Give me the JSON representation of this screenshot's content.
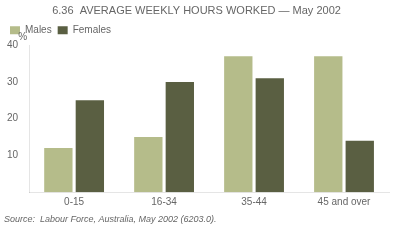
{
  "chart_data": {
    "type": "bar",
    "title": "6.36  AVERAGE WEEKLY HOURS WORKED — May 2002",
    "ylabel": "%",
    "categories": [
      "0-15",
      "16-34",
      "35-44",
      "45 and over"
    ],
    "series": [
      {
        "name": "Males",
        "color": "#b5bc8a",
        "values": [
          12,
          15,
          37,
          37
        ]
      },
      {
        "name": "Females",
        "color": "#5a5f42",
        "values": [
          25,
          30,
          31,
          14
        ]
      }
    ],
    "ylim": [
      0,
      40
    ],
    "yticks": [
      10,
      20,
      30,
      40
    ],
    "grid": false,
    "legend": "upper left",
    "annotations": [
      "Source:  Labour Force, Australia, May 2002 (6203.0)."
    ]
  }
}
